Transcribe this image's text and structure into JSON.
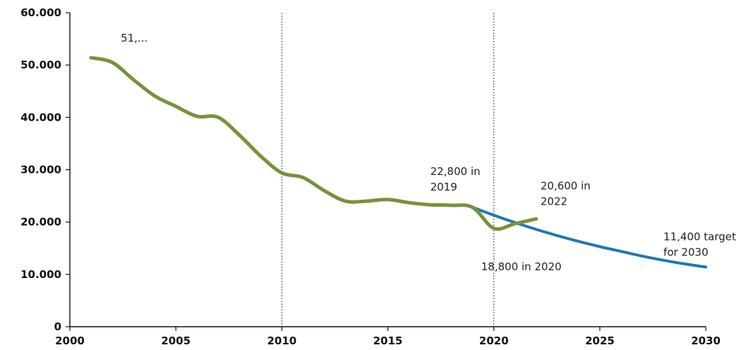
{
  "chart_data": {
    "type": "line",
    "title": "",
    "xlabel": "",
    "ylabel": "",
    "xlim": [
      2000,
      2030
    ],
    "ylim": [
      0,
      60000
    ],
    "x_ticks": [
      {
        "value": 2000,
        "label": "2000"
      },
      {
        "value": 2005,
        "label": "2005"
      },
      {
        "value": 2010,
        "label": "2010"
      },
      {
        "value": 2015,
        "label": "2015"
      },
      {
        "value": 2020,
        "label": "2020"
      },
      {
        "value": 2025,
        "label": "2025"
      },
      {
        "value": 2030,
        "label": "2030"
      }
    ],
    "y_ticks": [
      {
        "value": 0,
        "label": "0"
      },
      {
        "value": 10000,
        "label": "10.000"
      },
      {
        "value": 20000,
        "label": "20.000"
      },
      {
        "value": 30000,
        "label": "30.000"
      },
      {
        "value": 40000,
        "label": "40.000"
      },
      {
        "value": 50000,
        "label": "50.000"
      },
      {
        "value": 60000,
        "label": "60.000"
      }
    ],
    "reference_lines_x": [
      2010,
      2020
    ],
    "grid": false,
    "legend": "none",
    "series": [
      {
        "id": "actual",
        "color": "#76923c",
        "x": [
          2001,
          2002,
          2003,
          2004,
          2005,
          2006,
          2007,
          2008,
          2009,
          2010,
          2011,
          2012,
          2013,
          2014,
          2015,
          2016,
          2017,
          2018,
          2019,
          2020,
          2021,
          2022
        ],
        "y": [
          51400,
          50500,
          47200,
          44100,
          42100,
          40200,
          40000,
          36600,
          32600,
          29400,
          28500,
          26000,
          24000,
          24000,
          24300,
          23700,
          23300,
          23200,
          22800,
          18800,
          19700,
          20600
        ]
      },
      {
        "id": "target",
        "color": "#1f77b4",
        "x": [
          2019,
          2020,
          2021,
          2022,
          2023,
          2024,
          2025,
          2026,
          2027,
          2028,
          2029,
          2030
        ],
        "y": [
          22800,
          21300,
          19900,
          18600,
          17400,
          16300,
          15300,
          14400,
          13500,
          12700,
          12000,
          11400
        ]
      }
    ],
    "annotations": [
      {
        "id": "ann-2001",
        "text_lines": [
          "51,..."
        ],
        "x": 2002.4,
        "y": 54500
      },
      {
        "id": "ann-2019",
        "text_lines": [
          "22,800 in",
          "2019"
        ],
        "x": 2017.0,
        "y": 29000
      },
      {
        "id": "ann-2022",
        "text_lines": [
          "20,600 in",
          "2022"
        ],
        "x": 2022.2,
        "y": 26200
      },
      {
        "id": "ann-2020",
        "text_lines": [
          "18,800 in 2020"
        ],
        "x": 2019.4,
        "y": 10800
      },
      {
        "id": "ann-2030",
        "text_lines": [
          "11,400 target",
          "for 2030"
        ],
        "x": 2028.0,
        "y": 16500
      }
    ]
  }
}
